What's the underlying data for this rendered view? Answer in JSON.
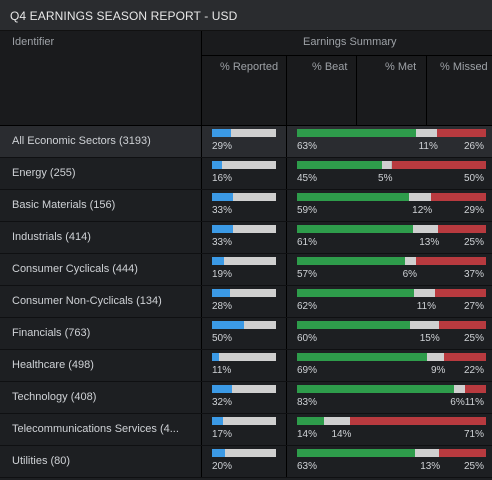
{
  "title": "Q4 EARNINGS SEASON REPORT - USD",
  "header": {
    "identifier": "Identifier",
    "group": "Earnings Summary",
    "columns": [
      "% Reported",
      "% Beat",
      "% Met",
      "% Missed"
    ]
  },
  "colors": {
    "reported": "#3b9ae6",
    "beat": "#2e9c4b",
    "met": "#cfcfcf",
    "missed": "#b83a3f"
  },
  "rows": [
    {
      "name": "All Economic Sectors (3193)",
      "reported": 29,
      "beat": 63,
      "met": 11,
      "missed": 26
    },
    {
      "name": "Energy (255)",
      "reported": 16,
      "beat": 45,
      "met": 5,
      "missed": 50
    },
    {
      "name": "Basic Materials (156)",
      "reported": 33,
      "beat": 59,
      "met": 12,
      "missed": 29
    },
    {
      "name": "Industrials (414)",
      "reported": 33,
      "beat": 61,
      "met": 13,
      "missed": 25
    },
    {
      "name": "Consumer Cyclicals (444)",
      "reported": 19,
      "beat": 57,
      "met": 6,
      "missed": 37
    },
    {
      "name": "Consumer Non-Cyclicals (134)",
      "reported": 28,
      "beat": 62,
      "met": 11,
      "missed": 27
    },
    {
      "name": "Financials (763)",
      "reported": 50,
      "beat": 60,
      "met": 15,
      "missed": 25
    },
    {
      "name": "Healthcare (498)",
      "reported": 11,
      "beat": 69,
      "met": 9,
      "missed": 22
    },
    {
      "name": "Technology (408)",
      "reported": 32,
      "beat": 83,
      "met": 6,
      "missed": 11
    },
    {
      "name": "Telecommunications Services (4...",
      "reported": 17,
      "beat": 14,
      "met": 14,
      "missed": 71
    },
    {
      "name": "Utilities (80)",
      "reported": 20,
      "beat": 63,
      "met": 13,
      "missed": 25
    }
  ]
}
